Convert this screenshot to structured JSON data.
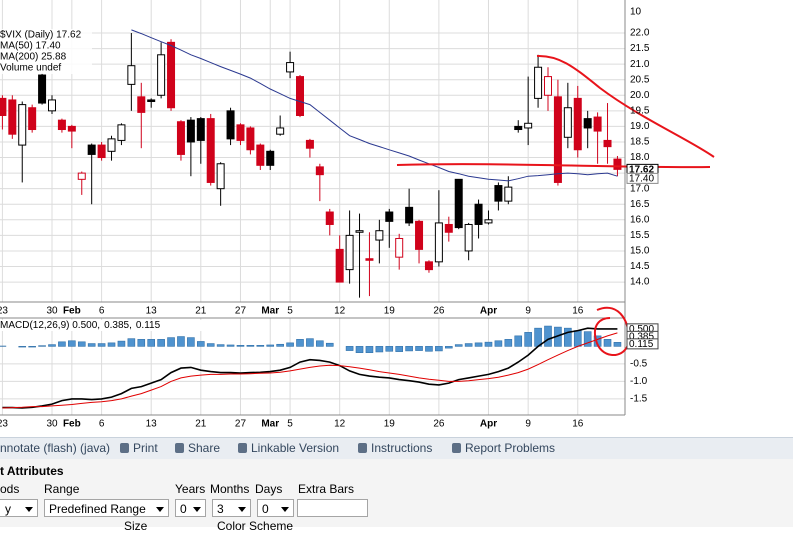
{
  "chart_data": [
    {
      "type": "candlestick",
      "categories": [
        "23",
        null,
        null,
        null,
        null,
        "30",
        null,
        "Feb",
        null,
        null,
        "6",
        null,
        null,
        null,
        null,
        "13",
        null,
        null,
        null,
        null,
        "21",
        null,
        null,
        null,
        "27",
        null,
        null,
        "Mar",
        null,
        "5",
        null,
        null,
        null,
        null,
        "12",
        null,
        null,
        null,
        null,
        "19",
        null,
        null,
        null,
        null,
        "26",
        null,
        null,
        null,
        null,
        "Apr",
        null,
        null,
        null,
        "9",
        null,
        null,
        null,
        null,
        "16",
        null,
        null,
        null,
        null
      ],
      "series": [
        {
          "name": "$VIX (Daily) 17.62",
          "up_color": "#000000",
          "down_color": "#d0021b",
          "last_label": "17.62",
          "open": [
            19.9,
            19.85,
            18.4,
            19.6,
            20.65,
            19.5,
            19.2,
            19.0,
            17.3,
            18.4,
            18.4,
            18.2,
            18.55,
            20.35,
            19.95,
            19.85,
            20.0,
            21.7,
            19.15,
            19.2,
            19.25,
            19.25,
            17.0,
            19.5,
            19.05,
            18.95,
            18.4,
            18.2,
            18.75,
            20.75,
            20.6,
            18.55,
            17.7,
            16.25,
            15.05,
            14.4,
            15.6,
            14.75,
            15.35,
            16.25,
            14.8,
            16.4,
            15.95,
            14.65,
            14.65,
            15.85,
            17.3,
            15.0,
            16.5,
            15.9,
            17.1,
            16.6,
            19.0,
            18.95,
            19.9,
            20.0,
            19.95,
            18.65,
            19.9,
            19.25,
            19.3,
            18.55,
            17.95
          ],
          "high": [
            20.0,
            20.0,
            19.8,
            19.7,
            20.7,
            20.0,
            19.25,
            19.05,
            17.55,
            18.45,
            18.5,
            18.7,
            19.1,
            22.0,
            20.4,
            19.9,
            21.7,
            21.8,
            19.2,
            19.3,
            19.3,
            19.4,
            17.85,
            19.6,
            19.1,
            19.0,
            18.45,
            18.25,
            19.35,
            21.4,
            20.65,
            18.6,
            17.8,
            16.35,
            15.5,
            16.3,
            16.2,
            15.6,
            16.0,
            16.35,
            15.55,
            17.0,
            16.0,
            14.7,
            16.95,
            16.1,
            17.3,
            15.9,
            16.65,
            16.3,
            17.2,
            17.4,
            19.2,
            20.6,
            21.3,
            20.9,
            20.5,
            20.4,
            20.3,
            19.5,
            19.45,
            19.75,
            18.05
          ],
          "low": [
            18.9,
            18.6,
            17.2,
            18.8,
            19.7,
            19.4,
            18.8,
            18.3,
            16.8,
            16.5,
            17.9,
            17.9,
            18.4,
            19.5,
            18.3,
            19.6,
            19.9,
            19.5,
            17.9,
            17.4,
            17.8,
            17.1,
            16.45,
            18.4,
            18.4,
            18.1,
            17.6,
            17.6,
            18.7,
            20.55,
            19.3,
            18.0,
            16.6,
            15.5,
            14.0,
            13.95,
            13.5,
            13.55,
            14.6,
            15.1,
            14.4,
            15.8,
            14.6,
            14.3,
            14.5,
            15.3,
            15.7,
            14.7,
            15.4,
            15.85,
            16.3,
            16.5,
            18.8,
            18.4,
            19.6,
            19.5,
            17.1,
            18.3,
            18.0,
            18.3,
            17.8,
            17.8,
            17.4
          ],
          "close": [
            19.35,
            18.75,
            19.7,
            18.9,
            19.75,
            19.85,
            18.9,
            18.85,
            17.5,
            18.1,
            18.0,
            18.6,
            19.05,
            20.95,
            19.45,
            19.8,
            21.3,
            19.6,
            18.1,
            18.5,
            18.55,
            17.2,
            17.8,
            18.6,
            18.55,
            18.25,
            17.75,
            17.75,
            18.95,
            21.05,
            19.35,
            18.3,
            17.45,
            15.85,
            14.0,
            15.5,
            15.65,
            14.7,
            15.65,
            15.95,
            15.4,
            15.9,
            15.05,
            14.4,
            15.9,
            15.6,
            15.75,
            15.85,
            15.85,
            16.0,
            16.6,
            17.05,
            18.9,
            19.1,
            20.9,
            20.6,
            17.2,
            19.6,
            18.25,
            18.95,
            18.85,
            18.35,
            17.62
          ]
        },
        {
          "name": "MA(50) 17.40",
          "color": "#2b3990",
          "last_label": "17.40",
          "values": [
            null,
            null,
            null,
            null,
            null,
            null,
            null,
            null,
            null,
            null,
            null,
            null,
            null,
            22.1,
            21.98,
            21.85,
            21.72,
            21.6,
            21.45,
            21.3,
            21.18,
            21.05,
            20.92,
            20.8,
            20.68,
            20.55,
            20.38,
            20.2,
            20.05,
            19.9,
            19.8,
            19.7,
            19.45,
            19.2,
            18.95,
            18.7,
            18.58,
            18.45,
            18.35,
            18.25,
            18.15,
            18.05,
            17.92,
            17.8,
            17.68,
            17.55,
            17.48,
            17.4,
            17.35,
            17.3,
            17.28,
            17.25,
            17.32,
            17.4,
            17.42,
            17.45,
            17.48,
            17.5,
            17.48,
            17.45,
            17.48,
            17.5,
            17.4
          ]
        }
      ],
      "notes": [
        {
          "text": "MA(200) 25.88",
          "color": "#d0021b"
        },
        {
          "text": "Volume undef",
          "color": "#000000"
        }
      ],
      "top_label": "10",
      "ylim": [
        13.36,
        23.06
      ],
      "yticks": [
        {
          "value": 14,
          "label": "14.0"
        },
        14.5,
        {
          "value": 15,
          "label": "15.0"
        },
        15.5,
        {
          "value": 16,
          "label": "16.0"
        },
        16.5,
        {
          "value": 17,
          "label": "17.0"
        },
        17.5,
        {
          "value": 18,
          "label": "18.0"
        },
        18.5,
        {
          "value": 19,
          "label": "19.0"
        },
        19.5,
        {
          "value": 20,
          "label": "20.0"
        },
        20.5,
        {
          "value": 21,
          "label": "21.0"
        },
        21.5,
        {
          "value": 22,
          "label": "22.0"
        }
      ],
      "grid": true
    },
    {
      "type": "macd",
      "categories": [
        "23",
        null,
        null,
        null,
        null,
        "30",
        null,
        "Feb",
        null,
        null,
        "6",
        null,
        null,
        null,
        null,
        "13",
        null,
        null,
        null,
        null,
        "21",
        null,
        null,
        null,
        "27",
        null,
        null,
        "Mar",
        null,
        "5",
        null,
        null,
        null,
        null,
        "12",
        null,
        null,
        null,
        null,
        "19",
        null,
        null,
        null,
        null,
        "26",
        null,
        null,
        null,
        null,
        "Apr",
        null,
        null,
        null,
        "9",
        null,
        null,
        null,
        null,
        "16",
        null,
        null,
        null,
        null
      ],
      "series": [
        {
          "name": "MACD(12,26,9) 0.500,",
          "kind": "line",
          "color": "#000000",
          "last_label": "0.500",
          "values": [
            -1.75,
            -1.75,
            -1.76,
            -1.74,
            -1.7,
            -1.65,
            -1.55,
            -1.5,
            -1.5,
            -1.52,
            -1.5,
            -1.45,
            -1.35,
            -1.2,
            -1.15,
            -1.05,
            -0.95,
            -0.75,
            -0.62,
            -0.6,
            -0.68,
            -0.72,
            -0.75,
            -0.75,
            -0.76,
            -0.75,
            -0.74,
            -0.72,
            -0.68,
            -0.6,
            -0.45,
            -0.38,
            -0.4,
            -0.45,
            -0.55,
            -0.7,
            -0.8,
            -0.85,
            -0.88,
            -0.9,
            -0.95,
            -0.98,
            -1.02,
            -1.08,
            -1.1,
            -1.05,
            -0.95,
            -0.9,
            -0.85,
            -0.8,
            -0.72,
            -0.62,
            -0.45,
            -0.25,
            0.0,
            0.2,
            0.3,
            0.4,
            0.45,
            0.52,
            0.5,
            0.5,
            0.5
          ]
        },
        {
          "name": "0.385,",
          "kind": "line",
          "color": "#e00000",
          "last_label": "0.385",
          "values": [
            -1.76,
            -1.75,
            -1.74,
            -1.72,
            -1.72,
            -1.7,
            -1.68,
            -1.66,
            -1.63,
            -1.6,
            -1.58,
            -1.55,
            -1.5,
            -1.42,
            -1.35,
            -1.25,
            -1.15,
            -1.0,
            -0.9,
            -0.85,
            -0.82,
            -0.8,
            -0.8,
            -0.79,
            -0.79,
            -0.78,
            -0.77,
            -0.76,
            -0.74,
            -0.7,
            -0.65,
            -0.6,
            -0.56,
            -0.54,
            -0.55,
            -0.58,
            -0.62,
            -0.67,
            -0.72,
            -0.76,
            -0.8,
            -0.85,
            -0.9,
            -0.94,
            -0.97,
            -1.0,
            -1.0,
            -0.98,
            -0.95,
            -0.92,
            -0.88,
            -0.82,
            -0.75,
            -0.65,
            -0.52,
            -0.38,
            -0.25,
            -0.12,
            0.0,
            0.1,
            0.2,
            0.3,
            0.385
          ]
        },
        {
          "name": "0.115",
          "kind": "bar",
          "color": "#4f93cf",
          "last_label": "0.115",
          "values": [
            0.01,
            0.0,
            -0.02,
            -0.02,
            0.02,
            0.05,
            0.13,
            0.16,
            0.13,
            0.08,
            0.08,
            0.1,
            0.15,
            0.22,
            0.2,
            0.2,
            0.2,
            0.25,
            0.28,
            0.25,
            0.14,
            0.08,
            0.05,
            0.04,
            0.03,
            0.03,
            0.03,
            0.04,
            0.06,
            0.1,
            0.2,
            0.22,
            0.16,
            0.09,
            0.0,
            -0.12,
            -0.18,
            -0.18,
            -0.16,
            -0.14,
            -0.15,
            -0.13,
            -0.12,
            -0.14,
            -0.13,
            -0.05,
            0.05,
            0.08,
            0.1,
            0.12,
            0.16,
            0.2,
            0.3,
            0.4,
            0.52,
            0.58,
            0.55,
            0.52,
            0.45,
            0.42,
            0.3,
            0.2,
            0.115
          ]
        }
      ],
      "ylim": [
        -1.96,
        0.81
      ],
      "yticks": [
        -1.5,
        {
          "value": -1,
          "label": "-1.0"
        },
        -0.5
      ],
      "grid": true
    }
  ],
  "toolbar": {
    "items": [
      "nnotate (flash) (java)",
      "Print",
      "Share",
      "Linkable Version",
      "Instructions",
      "Report Problems"
    ]
  },
  "attributes": {
    "title": "t Attributes",
    "labels": [
      "ods",
      "Range",
      "Years",
      "Months",
      "Days",
      "Extra Bars"
    ],
    "selects": [
      "y",
      "Predefined Range",
      "0",
      "3",
      "0"
    ],
    "footer": [
      "Size",
      "Color Scheme"
    ]
  }
}
